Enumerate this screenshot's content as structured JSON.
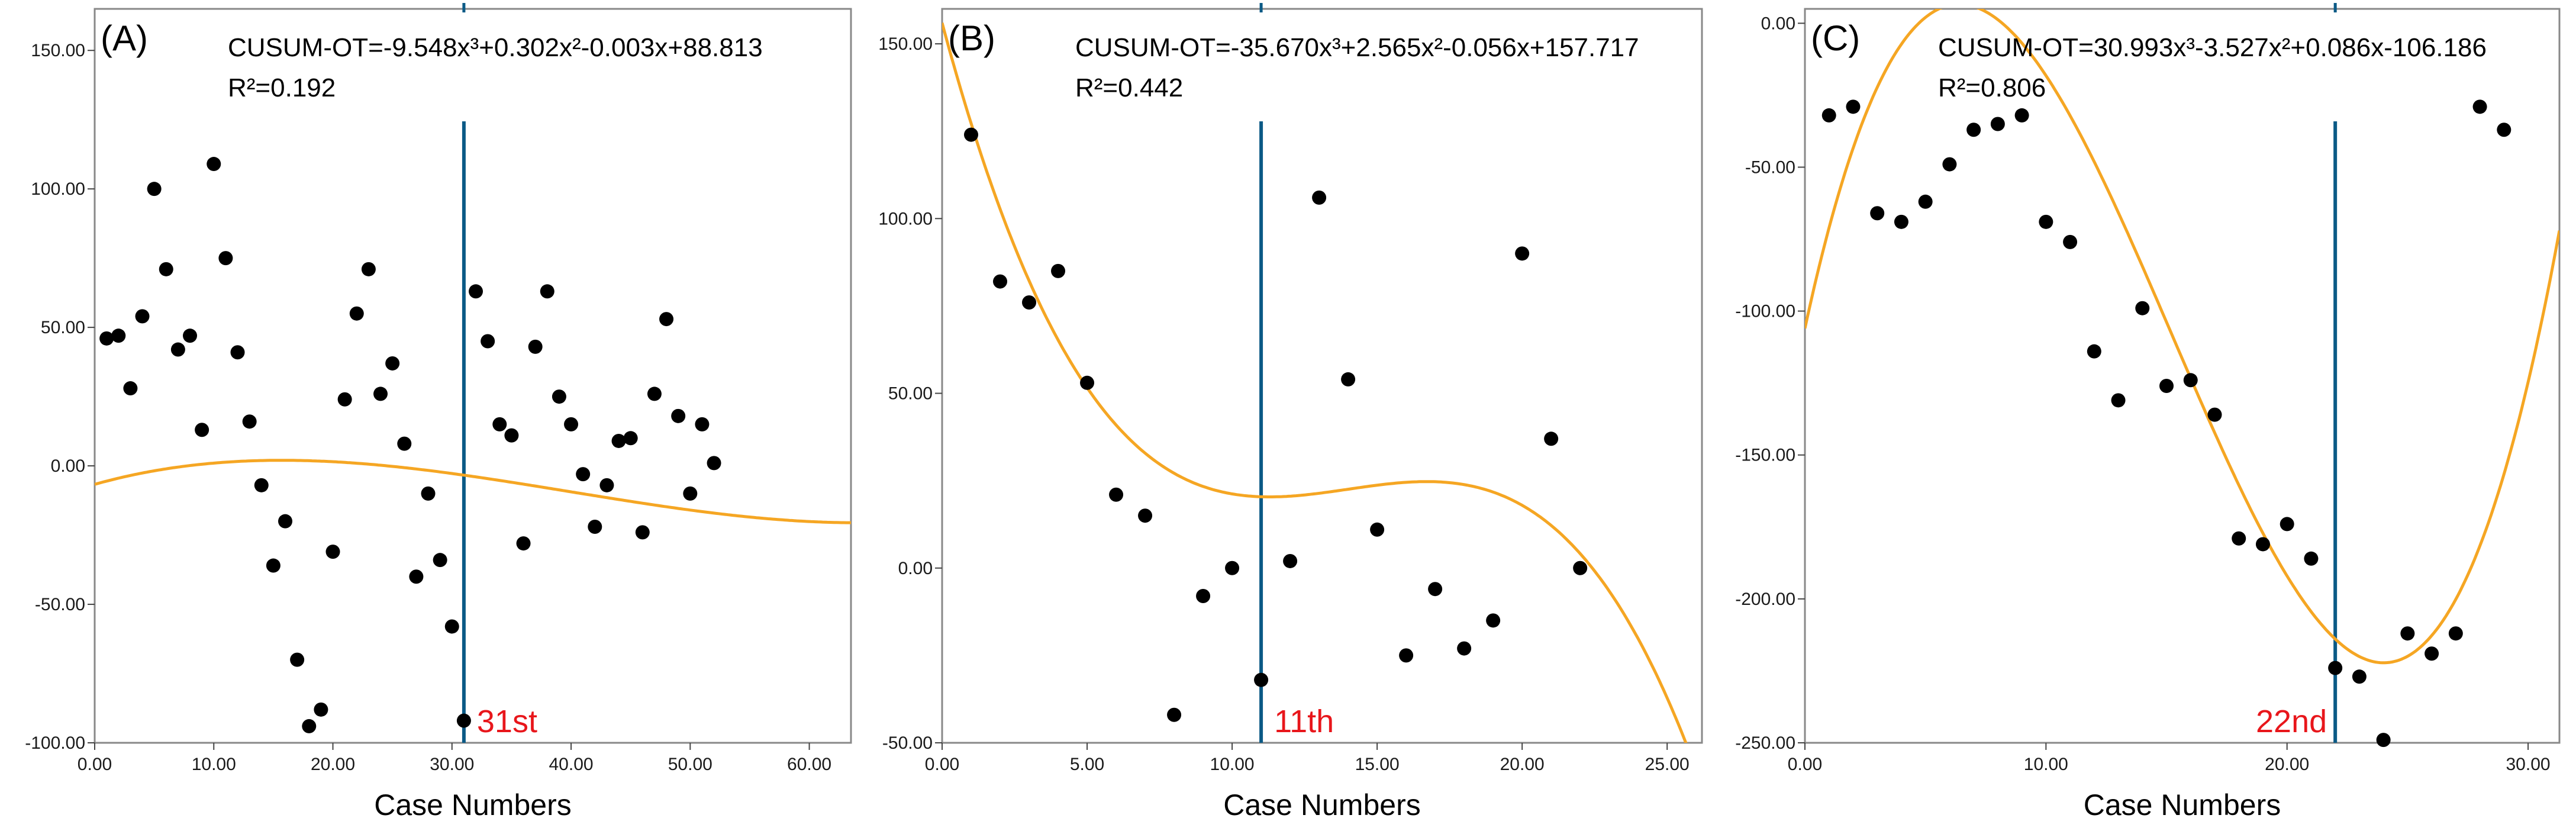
{
  "figure": {
    "colors": {
      "curve": "#F5A623",
      "marker_line": "#0B5A86",
      "points": "#000000",
      "case_label": "#E8161B",
      "frame": "#888888"
    }
  },
  "chart_data": [
    {
      "type": "scatter",
      "panel_label": "(A)",
      "equation": "CUSUM-OT=-9.548x³+0.302x²-0.003x+88.813",
      "r_squared_label": "R²=0.192",
      "xlabel": "Case Numbers",
      "ylabel": "",
      "xlim": [
        0,
        63.5
      ],
      "ylim": [
        -100,
        165
      ],
      "xticks": [
        0,
        10,
        20,
        30,
        40,
        50,
        60
      ],
      "xtick_labels": [
        "0.00",
        "10.00",
        "20.00",
        "30.00",
        "40.00",
        "50.00",
        "60.00"
      ],
      "yticks": [
        -100,
        -50,
        0,
        50,
        100,
        150
      ],
      "ytick_labels": [
        "-100.00",
        "-50.00",
        "0.00",
        "50.00",
        "100.00",
        "150.00"
      ],
      "marker_x": 31,
      "marker_label": "31st",
      "cubic_fit": {
        "a": 0.0004,
        "b": -0.0286,
        "c": -0.0183,
        "d": 2.0,
        "note": "fitted curve y = a(x-16)^3 + b(x-16)^2 + c(x-16) + d"
      },
      "points": [
        {
          "x": 1,
          "y": 46
        },
        {
          "x": 2,
          "y": 47
        },
        {
          "x": 3,
          "y": 28
        },
        {
          "x": 4,
          "y": 54
        },
        {
          "x": 5,
          "y": 100
        },
        {
          "x": 6,
          "y": 71
        },
        {
          "x": 7,
          "y": 42
        },
        {
          "x": 8,
          "y": 47
        },
        {
          "x": 9,
          "y": 13
        },
        {
          "x": 10,
          "y": 109
        },
        {
          "x": 11,
          "y": 75
        },
        {
          "x": 12,
          "y": 41
        },
        {
          "x": 13,
          "y": 16
        },
        {
          "x": 14,
          "y": -7
        },
        {
          "x": 15,
          "y": -36
        },
        {
          "x": 16,
          "y": -20
        },
        {
          "x": 17,
          "y": -70
        },
        {
          "x": 18,
          "y": -94
        },
        {
          "x": 19,
          "y": -88
        },
        {
          "x": 20,
          "y": -31
        },
        {
          "x": 21,
          "y": 24
        },
        {
          "x": 22,
          "y": 55
        },
        {
          "x": 23,
          "y": 71
        },
        {
          "x": 24,
          "y": 26
        },
        {
          "x": 25,
          "y": 37
        },
        {
          "x": 26,
          "y": 8
        },
        {
          "x": 27,
          "y": -40
        },
        {
          "x": 28,
          "y": -10
        },
        {
          "x": 29,
          "y": -34
        },
        {
          "x": 30,
          "y": -58
        },
        {
          "x": 31,
          "y": -92
        },
        {
          "x": 32,
          "y": 63
        },
        {
          "x": 33,
          "y": 45
        },
        {
          "x": 34,
          "y": 15
        },
        {
          "x": 35,
          "y": 11
        },
        {
          "x": 36,
          "y": -28
        },
        {
          "x": 37,
          "y": 43
        },
        {
          "x": 38,
          "y": 63
        },
        {
          "x": 39,
          "y": 25
        },
        {
          "x": 40,
          "y": 15
        },
        {
          "x": 41,
          "y": -3
        },
        {
          "x": 42,
          "y": -22
        },
        {
          "x": 43,
          "y": -7
        },
        {
          "x": 44,
          "y": 9
        },
        {
          "x": 45,
          "y": 10
        },
        {
          "x": 46,
          "y": -24
        },
        {
          "x": 47,
          "y": 26
        },
        {
          "x": 48,
          "y": 53
        },
        {
          "x": 49,
          "y": 18
        },
        {
          "x": 50,
          "y": -10
        },
        {
          "x": 51,
          "y": 15
        },
        {
          "x": 52,
          "y": 1
        }
      ]
    },
    {
      "type": "scatter",
      "panel_label": "(B)",
      "equation": "CUSUM-OT=-35.670x³+2.565x²-0.056x+157.717",
      "r_squared_label": "R²=0.442",
      "xlabel": "Case Numbers",
      "ylabel": "",
      "xlim": [
        0,
        26.2
      ],
      "ylim": [
        -50,
        160
      ],
      "xticks": [
        0,
        5,
        10,
        15,
        20,
        25
      ],
      "xtick_labels": [
        "0.00",
        "5.00",
        "10.00",
        "15.00",
        "20.00",
        "25.00"
      ],
      "yticks": [
        -50,
        0,
        50,
        100,
        150
      ],
      "ytick_labels": [
        "-50.00",
        "0.00",
        "50.00",
        "100.00",
        "150.00"
      ],
      "marker_x": 11,
      "marker_label": "11th",
      "cubic_fit": {
        "a": -0.05483,
        "b": 2.3025,
        "c": -31.02,
        "d": 156.0,
        "note": "fitted curve y = a x^3 + b x^2 + c x + d"
      },
      "points": [
        {
          "x": 1,
          "y": 124
        },
        {
          "x": 2,
          "y": 82
        },
        {
          "x": 3,
          "y": 76
        },
        {
          "x": 4,
          "y": 85
        },
        {
          "x": 5,
          "y": 53
        },
        {
          "x": 6,
          "y": 21
        },
        {
          "x": 7,
          "y": 15
        },
        {
          "x": 8,
          "y": -42
        },
        {
          "x": 9,
          "y": -8
        },
        {
          "x": 10,
          "y": 0
        },
        {
          "x": 11,
          "y": -32
        },
        {
          "x": 12,
          "y": 2
        },
        {
          "x": 13,
          "y": 106
        },
        {
          "x": 14,
          "y": 54
        },
        {
          "x": 15,
          "y": 11
        },
        {
          "x": 16,
          "y": -25
        },
        {
          "x": 17,
          "y": -6
        },
        {
          "x": 18,
          "y": -23
        },
        {
          "x": 19,
          "y": -15
        },
        {
          "x": 20,
          "y": 90
        },
        {
          "x": 21,
          "y": 37
        },
        {
          "x": 22,
          "y": 0
        }
      ]
    },
    {
      "type": "scatter",
      "panel_label": "(C)",
      "equation": "CUSUM-OT=30.993x³-3.527x²+0.086x-106.186",
      "r_squared_label": "R²=0.806",
      "xlabel": "Case Numbers",
      "ylabel": "",
      "xlim": [
        0,
        31.3
      ],
      "ylim": [
        -250,
        5
      ],
      "xticks": [
        0,
        10,
        20,
        30
      ],
      "xtick_labels": [
        "0.00",
        "10.00",
        "20.00",
        "30.00"
      ],
      "yticks": [
        -250,
        -200,
        -150,
        -100,
        -50,
        0
      ],
      "ytick_labels": [
        "-250.00",
        "-200.00",
        "-150.00",
        "-100.00",
        "-50.00",
        "0.00"
      ],
      "marker_x": 22,
      "marker_label": "22nd",
      "cubic_fit": {
        "a": 0.0838,
        "b": -3.8223,
        "c": 38.625,
        "d": -106.0,
        "note": "fitted curve y = a x^3 + b x^2 + c x + d"
      },
      "points": [
        {
          "x": 1,
          "y": -32
        },
        {
          "x": 2,
          "y": -29
        },
        {
          "x": 3,
          "y": -66
        },
        {
          "x": 4,
          "y": -69
        },
        {
          "x": 5,
          "y": -62
        },
        {
          "x": 6,
          "y": -49
        },
        {
          "x": 7,
          "y": -37
        },
        {
          "x": 8,
          "y": -35
        },
        {
          "x": 9,
          "y": -32
        },
        {
          "x": 10,
          "y": -69
        },
        {
          "x": 11,
          "y": -76
        },
        {
          "x": 12,
          "y": -114
        },
        {
          "x": 13,
          "y": -131
        },
        {
          "x": 14,
          "y": -99
        },
        {
          "x": 15,
          "y": -126
        },
        {
          "x": 16,
          "y": -124
        },
        {
          "x": 17,
          "y": -136
        },
        {
          "x": 18,
          "y": -179
        },
        {
          "x": 19,
          "y": -181
        },
        {
          "x": 20,
          "y": -174
        },
        {
          "x": 21,
          "y": -186
        },
        {
          "x": 22,
          "y": -224
        },
        {
          "x": 23,
          "y": -227
        },
        {
          "x": 24,
          "y": -249
        },
        {
          "x": 25,
          "y": -212
        },
        {
          "x": 26,
          "y": -219
        },
        {
          "x": 27,
          "y": -212
        },
        {
          "x": 28,
          "y": -29
        },
        {
          "x": 29,
          "y": -37
        }
      ]
    }
  ]
}
